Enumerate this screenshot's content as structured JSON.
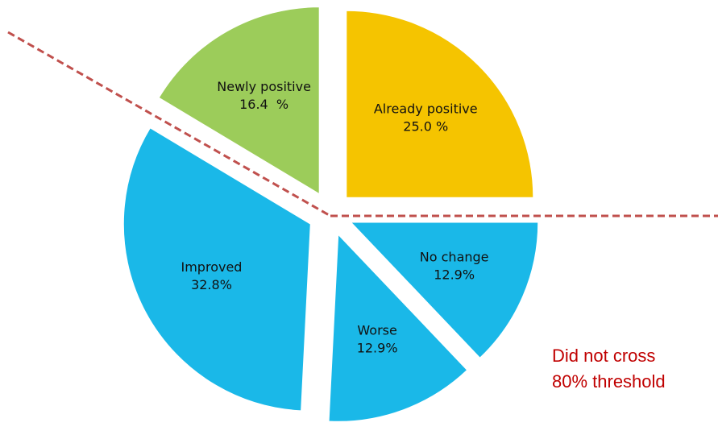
{
  "chart_data": {
    "type": "pie",
    "categories": [
      "Already positive",
      "No change",
      "Worse",
      "Improved",
      "Newly positive"
    ],
    "values": [
      25.0,
      12.9,
      12.9,
      32.8,
      16.4
    ],
    "value_labels": [
      "25.0 %",
      "12.9%",
      "12.9%",
      "32.8%",
      "16.4  %"
    ],
    "colors": [
      "#f5c400",
      "#1ab8e8",
      "#1ab8e8",
      "#1ab8e8",
      "#9ccc5a"
    ],
    "annotation": [
      "Did not cross",
      "80% threshold"
    ]
  }
}
